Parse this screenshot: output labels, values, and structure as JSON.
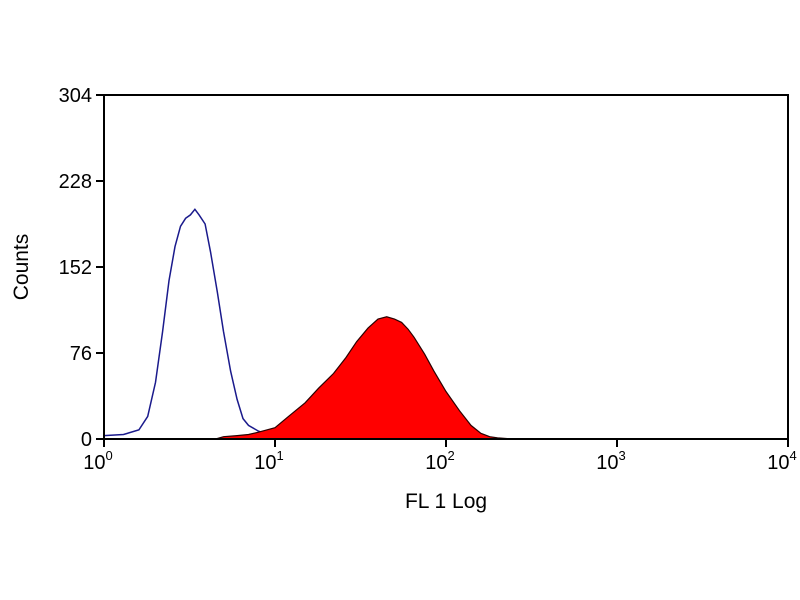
{
  "chart_data": {
    "type": "area",
    "title": "",
    "xlabel": "FL 1 Log",
    "ylabel": "Counts",
    "x_scale": "log",
    "xlim": [
      1,
      10000
    ],
    "ylim": [
      0,
      304
    ],
    "x_ticks": [
      {
        "value": 1,
        "base": "10",
        "exp": "0"
      },
      {
        "value": 10,
        "base": "10",
        "exp": "1"
      },
      {
        "value": 100,
        "base": "10",
        "exp": "2"
      },
      {
        "value": 1000,
        "base": "10",
        "exp": "3"
      },
      {
        "value": 10000,
        "base": "10",
        "exp": "4"
      }
    ],
    "y_ticks": [
      "0",
      "76",
      "152",
      "228",
      "304"
    ],
    "grid": false,
    "legend": "none",
    "series": [
      {
        "style": "outline",
        "color": "#1a1a8c",
        "points": [
          [
            1.0,
            3
          ],
          [
            1.3,
            4
          ],
          [
            1.6,
            8
          ],
          [
            1.8,
            20
          ],
          [
            2.0,
            50
          ],
          [
            2.2,
            95
          ],
          [
            2.4,
            140
          ],
          [
            2.6,
            170
          ],
          [
            2.8,
            188
          ],
          [
            3.0,
            195
          ],
          [
            3.2,
            198
          ],
          [
            3.4,
            203
          ],
          [
            3.6,
            198
          ],
          [
            3.9,
            190
          ],
          [
            4.2,
            165
          ],
          [
            4.6,
            130
          ],
          [
            5.0,
            95
          ],
          [
            5.5,
            60
          ],
          [
            6.0,
            35
          ],
          [
            6.5,
            18
          ],
          [
            7.0,
            12
          ],
          [
            8.0,
            7
          ],
          [
            9.0,
            4
          ],
          [
            10.0,
            2
          ],
          [
            12.0,
            1
          ],
          [
            15.0,
            0
          ]
        ]
      },
      {
        "style": "filled",
        "color": "#ff0000",
        "points": [
          [
            4.5,
            0
          ],
          [
            5.0,
            2
          ],
          [
            6.0,
            3
          ],
          [
            7.0,
            4
          ],
          [
            8.0,
            6
          ],
          [
            10.0,
            10
          ],
          [
            12.0,
            20
          ],
          [
            15.0,
            32
          ],
          [
            18.0,
            45
          ],
          [
            22.0,
            58
          ],
          [
            26.0,
            72
          ],
          [
            30.0,
            86
          ],
          [
            35.0,
            98
          ],
          [
            40.0,
            106
          ],
          [
            45.0,
            108
          ],
          [
            50.0,
            106
          ],
          [
            55.0,
            103
          ],
          [
            60.0,
            97
          ],
          [
            65.0,
            90
          ],
          [
            75.0,
            75
          ],
          [
            85.0,
            60
          ],
          [
            100.0,
            42
          ],
          [
            120.0,
            25
          ],
          [
            140.0,
            12
          ],
          [
            160.0,
            5
          ],
          [
            180.0,
            2
          ],
          [
            200.0,
            1
          ],
          [
            250.0,
            0
          ]
        ]
      }
    ]
  }
}
